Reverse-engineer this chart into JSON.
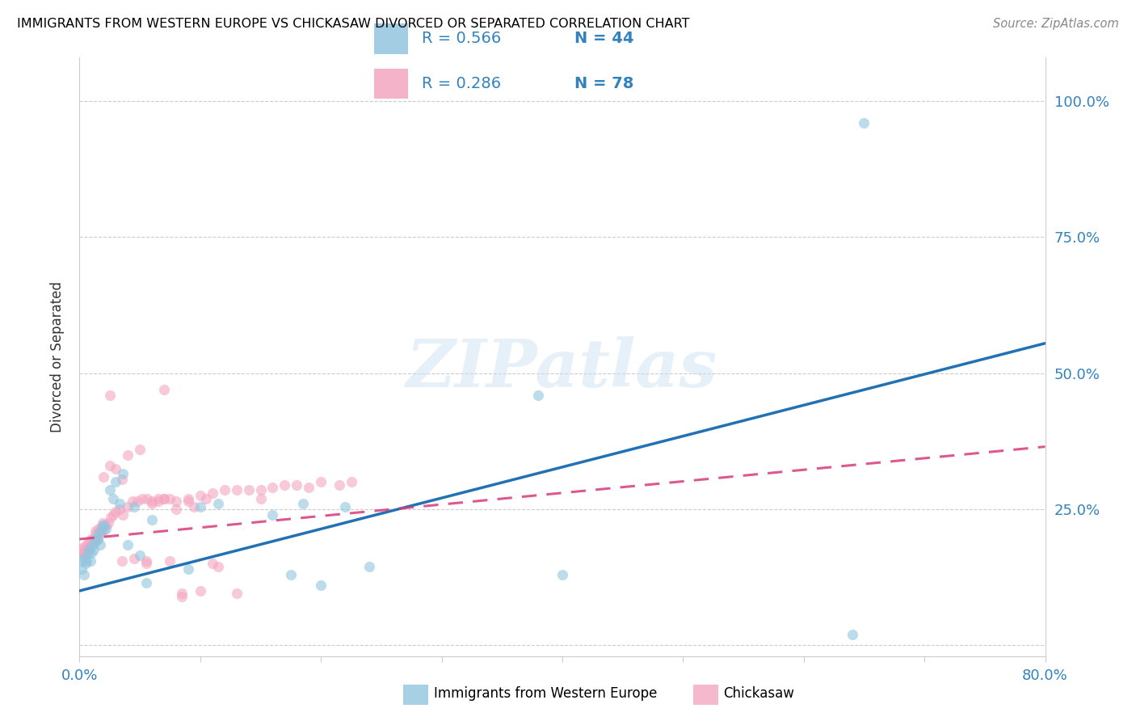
{
  "title": "IMMIGRANTS FROM WESTERN EUROPE VS CHICKASAW DIVORCED OR SEPARATED CORRELATION CHART",
  "source": "Source: ZipAtlas.com",
  "ylabel": "Divorced or Separated",
  "xlim": [
    0.0,
    0.8
  ],
  "ylim": [
    -0.02,
    1.08
  ],
  "ytick_values": [
    0.0,
    0.25,
    0.5,
    0.75,
    1.0
  ],
  "ytick_labels_right": [
    "",
    "25.0%",
    "50.0%",
    "75.0%",
    "100.0%"
  ],
  "xtick_values": [
    0.0,
    0.1,
    0.2,
    0.3,
    0.4,
    0.5,
    0.6,
    0.7,
    0.8
  ],
  "blue_color": "#92c5de",
  "pink_color": "#f4a6c0",
  "blue_line_color": "#2171b5",
  "pink_line_color": "#d63b7a",
  "blue_R": 0.566,
  "blue_N": 44,
  "pink_R": 0.286,
  "pink_N": 78,
  "legend_label_blue": "Immigrants from Western Europe",
  "legend_label_pink": "Chickasaw",
  "watermark": "ZIPatlas",
  "blue_line_x0": 0.0,
  "blue_line_y0": 0.1,
  "blue_line_x1": 0.8,
  "blue_line_y1": 0.555,
  "pink_line_x0": 0.0,
  "pink_line_y0": 0.195,
  "pink_line_x1": 0.8,
  "pink_line_y1": 0.365,
  "blue_scatter_x": [
    0.001,
    0.002,
    0.003,
    0.004,
    0.005,
    0.006,
    0.007,
    0.008,
    0.009,
    0.01,
    0.011,
    0.012,
    0.013,
    0.014,
    0.015,
    0.016,
    0.017,
    0.018,
    0.019,
    0.02,
    0.022,
    0.025,
    0.028,
    0.03,
    0.033,
    0.036,
    0.04,
    0.045,
    0.05,
    0.055,
    0.06,
    0.09,
    0.1,
    0.115,
    0.16,
    0.175,
    0.185,
    0.2,
    0.22,
    0.24,
    0.38,
    0.4,
    0.64,
    0.65
  ],
  "blue_scatter_y": [
    0.155,
    0.14,
    0.16,
    0.13,
    0.15,
    0.155,
    0.17,
    0.175,
    0.155,
    0.17,
    0.185,
    0.175,
    0.19,
    0.195,
    0.195,
    0.205,
    0.185,
    0.21,
    0.22,
    0.22,
    0.215,
    0.285,
    0.27,
    0.3,
    0.26,
    0.315,
    0.185,
    0.255,
    0.165,
    0.115,
    0.23,
    0.14,
    0.255,
    0.26,
    0.24,
    0.13,
    0.26,
    0.11,
    0.255,
    0.145,
    0.46,
    0.13,
    0.02,
    0.96
  ],
  "pink_scatter_x": [
    0.001,
    0.002,
    0.003,
    0.004,
    0.005,
    0.006,
    0.007,
    0.008,
    0.009,
    0.01,
    0.011,
    0.012,
    0.013,
    0.014,
    0.015,
    0.016,
    0.017,
    0.018,
    0.019,
    0.02,
    0.022,
    0.024,
    0.026,
    0.028,
    0.03,
    0.033,
    0.036,
    0.04,
    0.044,
    0.048,
    0.052,
    0.056,
    0.06,
    0.065,
    0.07,
    0.075,
    0.08,
    0.09,
    0.1,
    0.11,
    0.12,
    0.13,
    0.14,
    0.15,
    0.16,
    0.17,
    0.18,
    0.19,
    0.2,
    0.215,
    0.225,
    0.03,
    0.04,
    0.05,
    0.06,
    0.07,
    0.08,
    0.09,
    0.1,
    0.115,
    0.02,
    0.025,
    0.035,
    0.045,
    0.055,
    0.065,
    0.075,
    0.085,
    0.095,
    0.105,
    0.025,
    0.035,
    0.055,
    0.07,
    0.085,
    0.11,
    0.13,
    0.15
  ],
  "pink_scatter_y": [
    0.175,
    0.17,
    0.18,
    0.165,
    0.17,
    0.185,
    0.18,
    0.19,
    0.18,
    0.195,
    0.195,
    0.19,
    0.21,
    0.205,
    0.195,
    0.215,
    0.205,
    0.215,
    0.225,
    0.21,
    0.22,
    0.225,
    0.235,
    0.24,
    0.245,
    0.25,
    0.24,
    0.255,
    0.265,
    0.265,
    0.27,
    0.27,
    0.26,
    0.265,
    0.27,
    0.27,
    0.265,
    0.27,
    0.275,
    0.28,
    0.285,
    0.285,
    0.285,
    0.285,
    0.29,
    0.295,
    0.295,
    0.29,
    0.3,
    0.295,
    0.3,
    0.325,
    0.35,
    0.36,
    0.265,
    0.27,
    0.25,
    0.265,
    0.1,
    0.145,
    0.31,
    0.46,
    0.305,
    0.16,
    0.155,
    0.27,
    0.155,
    0.09,
    0.255,
    0.27,
    0.33,
    0.155,
    0.15,
    0.47,
    0.095,
    0.15,
    0.095,
    0.27
  ]
}
